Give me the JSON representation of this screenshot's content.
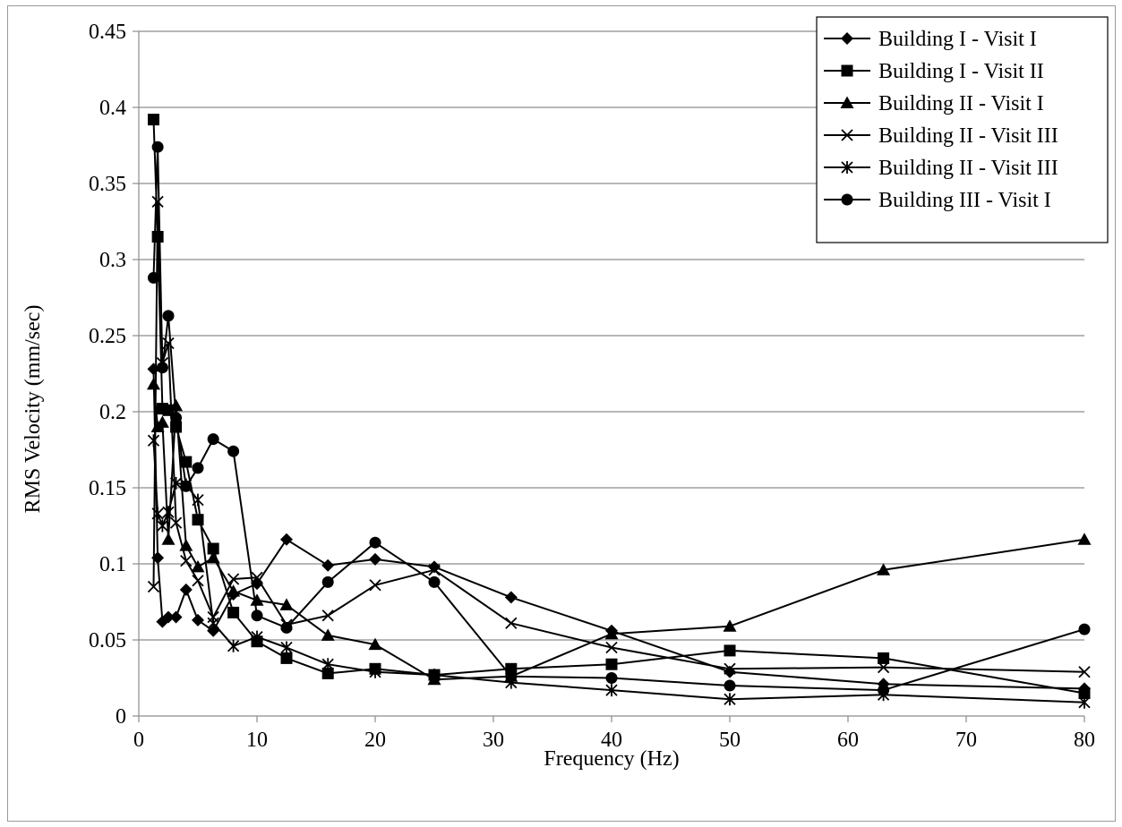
{
  "chart_data": {
    "type": "line",
    "title": "",
    "xlabel": "Frequency (Hz)",
    "ylabel": "RMS Velocity (mm/sec)",
    "xlim": [
      0,
      80
    ],
    "ylim": [
      0,
      0.45
    ],
    "xticks": [
      0,
      10,
      20,
      30,
      40,
      50,
      60,
      70,
      80
    ],
    "yticks": [
      0,
      0.05,
      0.1,
      0.15,
      0.2,
      0.25,
      0.3,
      0.35,
      0.4,
      0.45
    ],
    "xtick_labels": [
      "0",
      "10",
      "20",
      "30",
      "40",
      "50",
      "60",
      "70",
      "80"
    ],
    "ytick_labels": [
      "0",
      "0.05",
      "0.1",
      "0.15",
      "0.2",
      "0.25",
      "0.3",
      "0.35",
      "0.4",
      "0.45"
    ],
    "grid": "horizontal",
    "legend_position": "top-right",
    "line_color": "#000000",
    "grid_color": "#8c8c8c",
    "series": [
      {
        "name": "Building I - Visit I",
        "marker": "diamond",
        "x": [
          1.25,
          1.6,
          2,
          2.5,
          3.15,
          4,
          5,
          6.3,
          8,
          10,
          12.5,
          16,
          20,
          25,
          31.5,
          40,
          50,
          63,
          80
        ],
        "y": [
          0.228,
          0.104,
          0.062,
          0.065,
          0.065,
          0.083,
          0.063,
          0.056,
          0.08,
          0.087,
          0.116,
          0.099,
          0.103,
          0.098,
          0.078,
          0.056,
          0.029,
          0.021,
          0.018
        ]
      },
      {
        "name": "Building I - Visit II",
        "marker": "square",
        "x": [
          1.25,
          1.6,
          2,
          2.5,
          3.15,
          4,
          5,
          6.3,
          8,
          10,
          12.5,
          16,
          20,
          25,
          31.5,
          40,
          50,
          63,
          80
        ],
        "y": [
          0.392,
          0.315,
          0.202,
          0.201,
          0.19,
          0.167,
          0.129,
          0.11,
          0.068,
          0.049,
          0.038,
          0.028,
          0.031,
          0.027,
          0.031,
          0.034,
          0.043,
          0.038,
          0.015
        ]
      },
      {
        "name": "Building II - Visit I",
        "marker": "triangle",
        "x": [
          1.25,
          1.6,
          2,
          2.5,
          3.15,
          4,
          5,
          6.3,
          8,
          10,
          12.5,
          16,
          20,
          25,
          31.5,
          40,
          50,
          63,
          80
        ],
        "y": [
          0.218,
          0.19,
          0.193,
          0.116,
          0.204,
          0.112,
          0.098,
          0.104,
          0.082,
          0.076,
          0.073,
          0.053,
          0.047,
          0.024,
          0.026,
          0.054,
          0.059,
          0.096,
          0.116
        ]
      },
      {
        "name": "Building II - Visit III",
        "marker": "x",
        "x": [
          1.25,
          1.6,
          2,
          2.5,
          3.15,
          4,
          5,
          6.3,
          8,
          10,
          12.5,
          16,
          20,
          25,
          31.5,
          40,
          50,
          63,
          80
        ],
        "y": [
          0.085,
          0.338,
          0.232,
          0.245,
          0.127,
          0.102,
          0.089,
          0.065,
          0.09,
          0.091,
          0.06,
          0.066,
          0.086,
          0.096,
          0.061,
          0.045,
          0.031,
          0.032,
          0.029
        ]
      },
      {
        "name": "Building II - Visit III",
        "marker": "star",
        "x": [
          1.25,
          1.6,
          2,
          2.5,
          3.15,
          4,
          5,
          6.3,
          8,
          10,
          12.5,
          16,
          20,
          25,
          31.5,
          40,
          50,
          63,
          80
        ],
        "y": [
          0.181,
          0.133,
          0.125,
          0.134,
          0.153,
          0.152,
          0.142,
          0.061,
          0.046,
          0.052,
          0.045,
          0.034,
          0.029,
          0.027,
          0.022,
          0.017,
          0.011,
          0.014,
          0.009
        ]
      },
      {
        "name": "Building III - Visit I",
        "marker": "circle",
        "x": [
          1.25,
          1.6,
          2,
          2.5,
          3.15,
          4,
          5,
          6.3,
          8,
          10,
          12.5,
          16,
          20,
          25,
          31.5,
          40,
          50,
          63,
          80
        ],
        "y": [
          0.288,
          0.374,
          0.229,
          0.263,
          0.196,
          0.151,
          0.163,
          0.182,
          0.174,
          0.066,
          0.058,
          0.088,
          0.114,
          0.088,
          0.026,
          0.025,
          0.02,
          0.017,
          0.057
        ]
      }
    ]
  }
}
